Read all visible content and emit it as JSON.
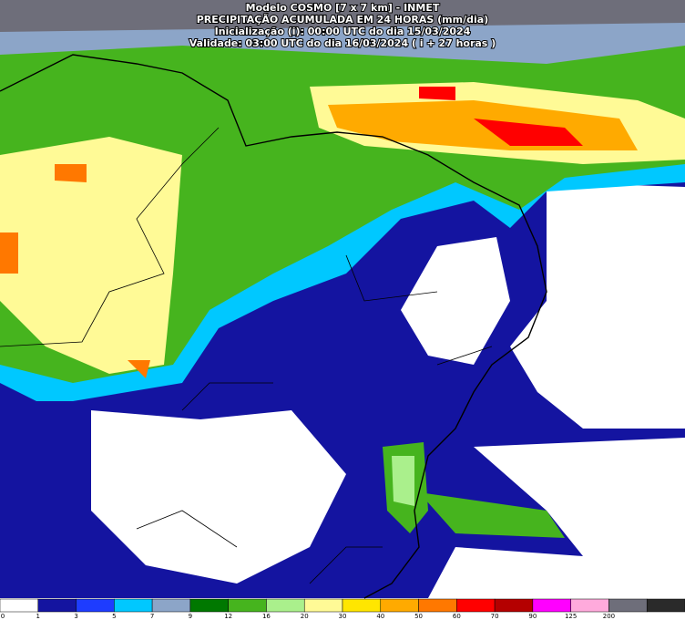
{
  "header": {
    "lines": [
      "Modelo COSMO [7 x 7 km] - INMET",
      "PRECIPITAÇÃO ACUMULADA EM 24 HORAS (mm/dia)",
      "Inicialização (i): 00:00 UTC do dia 15/03/2024",
      "Validade: 03:00 UTC do dia 16/03/2024 ( i + 27 horas )"
    ]
  },
  "legend": {
    "levels": [
      0,
      1,
      3,
      5,
      7,
      9,
      12,
      16,
      20,
      30,
      40,
      50,
      60,
      70,
      90,
      125,
      200
    ],
    "colors": [
      "#ffffff",
      "#1414a0",
      "#1e3cff",
      "#00c8ff",
      "#8ca5c8",
      "#007800",
      "#46b41e",
      "#aaf08c",
      "#fffa96",
      "#ffe600",
      "#ffaa00",
      "#ff7800",
      "#ff0000",
      "#b40000",
      "#ff00ff",
      "#ffaadc",
      "#6e6e7a",
      "#2a2a2a"
    ]
  }
}
